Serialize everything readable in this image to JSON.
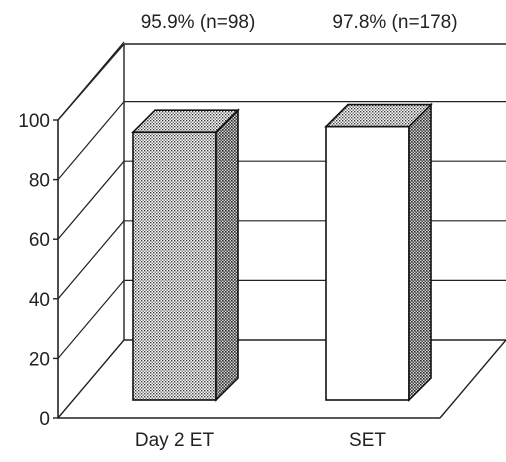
{
  "chart_data": {
    "type": "bar",
    "categories": [
      "Day 2 ET",
      "SET"
    ],
    "values": [
      95.9,
      97.8
    ],
    "annotations": [
      "95.9% (n=98)",
      "97.8% (n=178)"
    ],
    "bar_fills": [
      "stippled",
      "white"
    ],
    "ylim": [
      0,
      100
    ],
    "yticks": [
      "0",
      "20",
      "40",
      "60",
      "80",
      "100"
    ],
    "grid": true,
    "style": "3d"
  }
}
